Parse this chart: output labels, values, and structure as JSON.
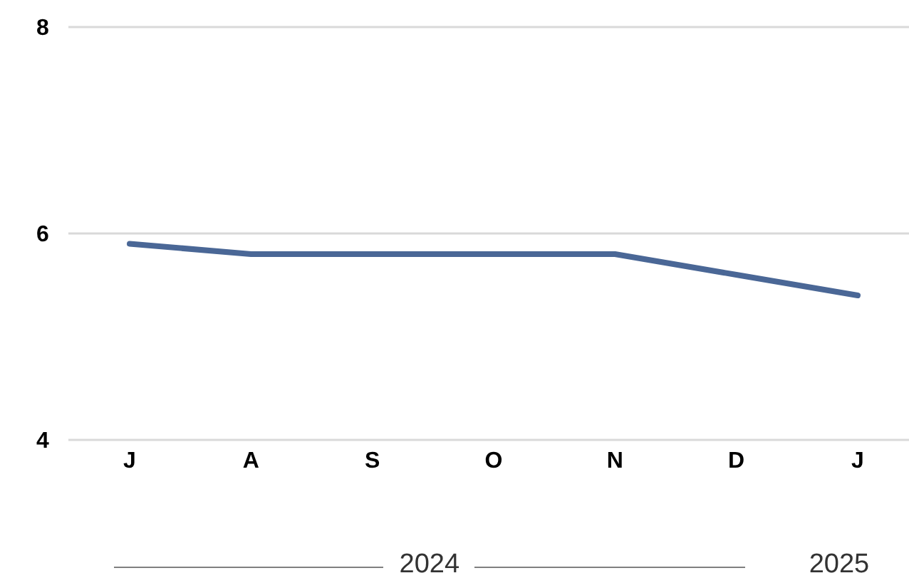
{
  "chart_data": {
    "type": "line",
    "categories": [
      "J",
      "A",
      "S",
      "O",
      "N",
      "D",
      "J"
    ],
    "series": [
      {
        "color": "#4a6796",
        "values": [
          5.9,
          5.8,
          5.8,
          5.8,
          5.8,
          5.6,
          5.4
        ]
      }
    ],
    "ylim": [
      4,
      8
    ],
    "yticks": [
      4,
      6,
      8
    ],
    "grid": "y",
    "marker": "none",
    "line_style": "solid",
    "annotations": [
      "2024",
      "2025"
    ]
  }
}
